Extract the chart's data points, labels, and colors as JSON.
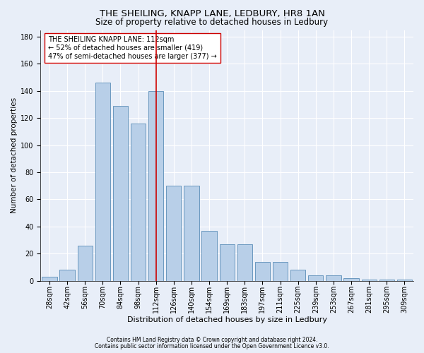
{
  "title1": "THE SHEILING, KNAPP LANE, LEDBURY, HR8 1AN",
  "title2": "Size of property relative to detached houses in Ledbury",
  "xlabel": "Distribution of detached houses by size in Ledbury",
  "ylabel": "Number of detached properties",
  "categories": [
    "28sqm",
    "42sqm",
    "56sqm",
    "70sqm",
    "84sqm",
    "98sqm",
    "112sqm",
    "126sqm",
    "140sqm",
    "154sqm",
    "169sqm",
    "183sqm",
    "197sqm",
    "211sqm",
    "225sqm",
    "239sqm",
    "253sqm",
    "267sqm",
    "281sqm",
    "295sqm",
    "309sqm"
  ],
  "values": [
    3,
    8,
    26,
    146,
    129,
    116,
    140,
    70,
    70,
    37,
    27,
    27,
    14,
    14,
    8,
    4,
    4,
    2,
    1,
    1,
    1
  ],
  "bar_color": "#b8cfe8",
  "bar_edge_color": "#5b8db8",
  "vline_x": 6,
  "vline_color": "#cc0000",
  "annotation_text": "THE SHEILING KNAPP LANE: 112sqm\n← 52% of detached houses are smaller (419)\n47% of semi-detached houses are larger (377) →",
  "annotation_box_color": "#ffffff",
  "annotation_box_edge": "#cc0000",
  "ylim": [
    0,
    185
  ],
  "yticks": [
    0,
    20,
    40,
    60,
    80,
    100,
    120,
    140,
    160,
    180
  ],
  "footer1": "Contains HM Land Registry data © Crown copyright and database right 2024.",
  "footer2": "Contains public sector information licensed under the Open Government Licence v3.0.",
  "background_color": "#e8eef8",
  "plot_background": "#e8eef8",
  "grid_color": "#ffffff",
  "title1_fontsize": 9.5,
  "title2_fontsize": 8.5,
  "xlabel_fontsize": 8,
  "ylabel_fontsize": 7.5,
  "footer_fontsize": 5.5,
  "tick_fontsize": 7,
  "ann_fontsize": 7
}
